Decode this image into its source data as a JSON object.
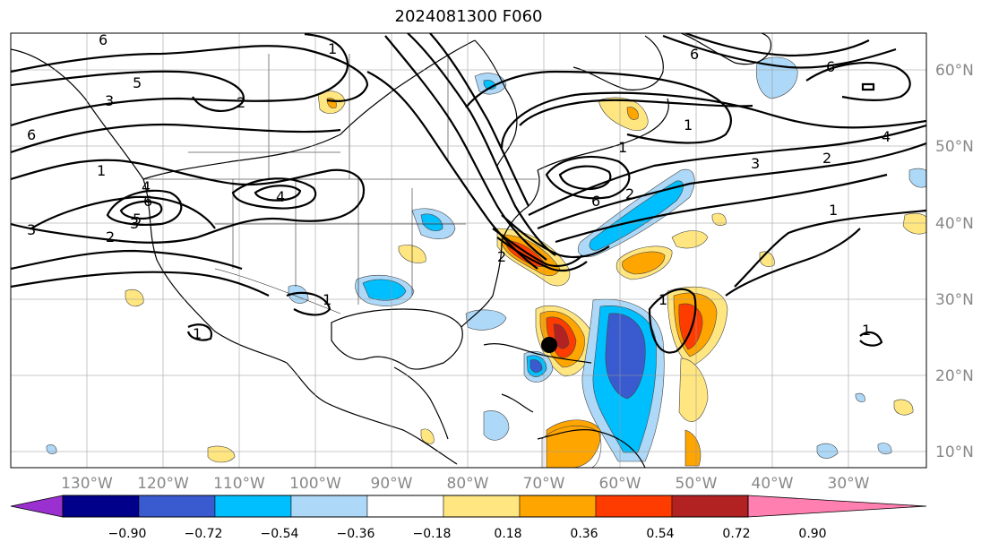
{
  "title": "2024081300 F060",
  "lat_labels": [
    "60°N",
    "50°N",
    "40°N",
    "30°N",
    "20°N",
    "10°N"
  ],
  "lon_labels": [
    "130°W",
    "120°W",
    "110°W",
    "100°W",
    "90°W",
    "80°W",
    "70°W",
    "60°W",
    "50°W",
    "40°W",
    "30°W"
  ],
  "colorbar": {
    "colors": [
      "#9b30d0",
      "#00008b",
      "#3a5bd0",
      "#00bfff",
      "#add8f7",
      "#ffffff",
      "#ffe680",
      "#ffa500",
      "#ff3c00",
      "#b22222",
      "#ff80b0"
    ],
    "labels": [
      "−0.90",
      "−0.72",
      "−0.54",
      "−0.36",
      "−0.18",
      "0.18",
      "0.36",
      "0.54",
      "0.72",
      "0.90"
    ]
  },
  "contour_labels": [
    "6",
    "1",
    "2",
    "3",
    "3",
    "5",
    "6",
    "6",
    "4",
    "1",
    "2",
    "3",
    "5",
    "4",
    "1",
    "1",
    "1",
    "1",
    "6",
    "2",
    "3",
    "2",
    "4",
    "1",
    "6",
    "1",
    "1",
    "6",
    "2"
  ],
  "storm_marker": "storm-center"
}
